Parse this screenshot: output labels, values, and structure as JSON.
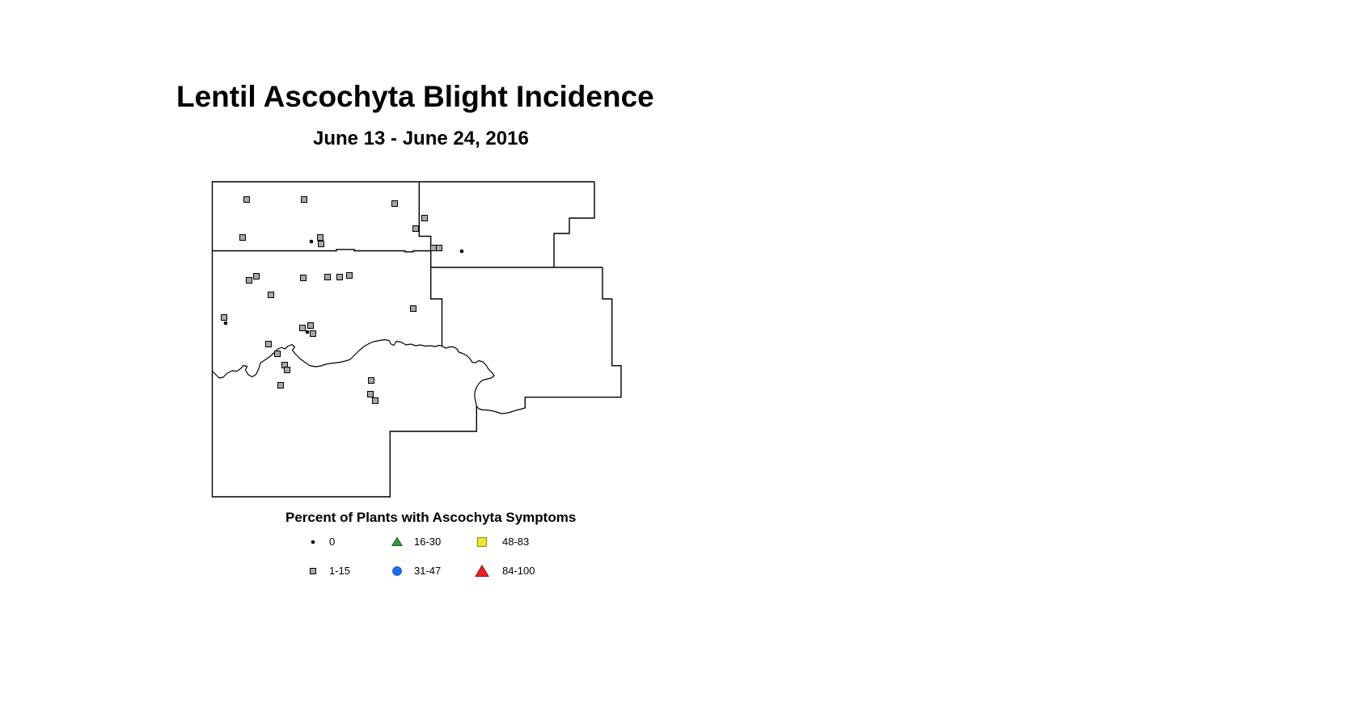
{
  "header": {
    "title": "Lentil Ascochyta Blight Incidence",
    "subtitle": "June 13 - June 24, 2016"
  },
  "legend": {
    "title": "Percent of Plants with Ascochyta Symptoms",
    "items": [
      {
        "label": "0",
        "symbol": "dot",
        "fill": "#000000",
        "stroke": "#000000"
      },
      {
        "label": "1-15",
        "symbol": "small-square",
        "fill": "#a8a8a8",
        "stroke": "#000000"
      },
      {
        "label": "16-30",
        "symbol": "triangle",
        "fill": "#2f9b2f",
        "stroke": "#1d671d"
      },
      {
        "label": "31-47",
        "symbol": "circle",
        "fill": "#1b6cf2",
        "stroke": "#1254c4"
      },
      {
        "label": "48-83",
        "symbol": "square",
        "fill": "#ece62e",
        "stroke": "#8f8d1e"
      },
      {
        "label": "84-100",
        "symbol": "large-triangle",
        "fill": "#f01e23",
        "stroke": "#8c1015"
      }
    ]
  },
  "map": {
    "line_color": "#000000",
    "marker_fill": "#a8a8a8",
    "marker_stroke": "#000000",
    "boundaries": [
      "735,225 262.5,225 262.5,615 482.3,615 482.3,534 589.3,534 589.3,502",
      "735,225 735,270 704,270 704,289 685,289 685,331",
      "518.3,225 518.3,292.5 532.7,292.5 532.7,370 546.5,370 546.5,428.3",
      "262.5,310.5 416,310.5 416,308.8 438,308.8 438,310.5 501,310.5 501,311.8 511,311.8 511,310.5 532.7,310.5",
      "532.7,331 745,331",
      "745,331 745,370 756.7,370 756.7,452.7 768,452.7 768,491.7 649.3,491.7 649.3,505"
    ],
    "river": "262.5,459.5 267,464 271,468 276,467 281,462 287,459 293,459.5 298,456 301,452.5 305.5,453.5 303.5,458 307,464 312,466.5 317,463 320,456 322,449.5 327,446 333,442 338,437.5 343,432.5 348,430 352,432 356,428.5 361,426.5 364.5,429.5 361.5,433.5 366,439 371,444 377,448.5 383,452.5 390,454 397,453 404,450.5 412,449.5 420,448.5 427,447 433,445 438,440 444,434 450,429 456,425.5 462,423 469,421.5 476,420.5 481,421.5 483.5,426 487,427.5 490,422.5 496,423.5 502,427 508,426 514,428 520,427 526,428.5 532,428 538,429 543,427.5 546.5,428.3 551,431 556,429.5 561,429.5 565,432 567.5,436 572,437.5 577,440 581,444 584,448.5 588,449 592,446.5 597,448 601,452 604,457 608,461 611,465 607.5,468 601,469.5 596,471 592,475 589,480 587,486 587,492 588.3,498 589.3,503 592,506 597,507.5 602,507.5 608,508.5 614,510 620,512 626,511.5 632,510 638,508 644,506.5 649.3,505",
    "points_low": [
      [
        305,
        247
      ],
      [
        376,
        247
      ],
      [
        488,
        252
      ],
      [
        300,
        294
      ],
      [
        396,
        294
      ],
      [
        397,
        302
      ],
      [
        525,
        270
      ],
      [
        514,
        283
      ],
      [
        536,
        307
      ],
      [
        543,
        307
      ],
      [
        308,
        347
      ],
      [
        317,
        342
      ],
      [
        375,
        344
      ],
      [
        405,
        343
      ],
      [
        420,
        343
      ],
      [
        432,
        341
      ],
      [
        335,
        365
      ],
      [
        277,
        393
      ],
      [
        374,
        406
      ],
      [
        384,
        403
      ],
      [
        387,
        413
      ],
      [
        332,
        426
      ],
      [
        343,
        438
      ],
      [
        352,
        452
      ],
      [
        355,
        458
      ],
      [
        347,
        477
      ],
      [
        511,
        382
      ],
      [
        459,
        471
      ],
      [
        458,
        488
      ],
      [
        464,
        496
      ]
    ],
    "points_zero": [
      [
        385,
        299
      ],
      [
        571,
        311
      ],
      [
        279,
        400
      ],
      [
        380,
        411
      ]
    ]
  }
}
